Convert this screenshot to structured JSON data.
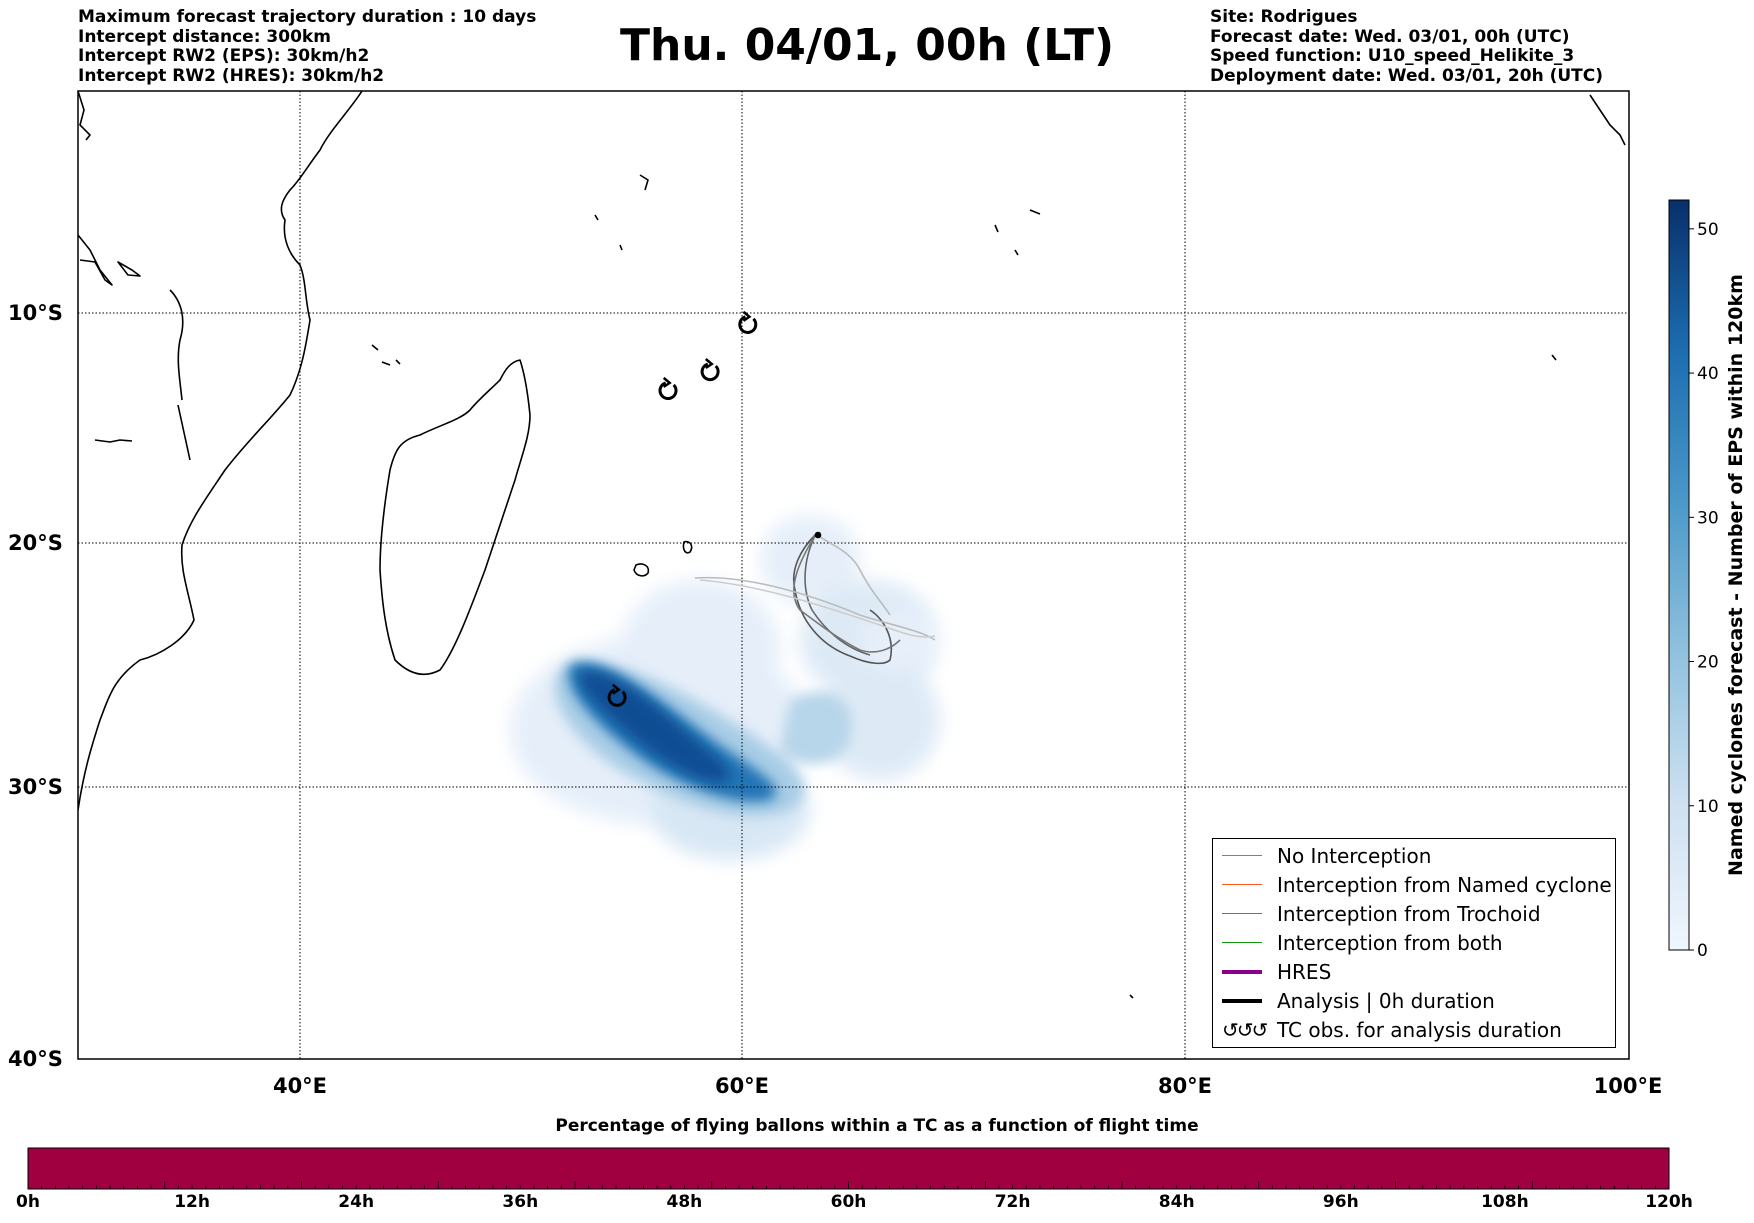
{
  "header": {
    "left": [
      "Maximum forecast trajectory duration : 10 days",
      "Intercept distance: 300km",
      "Intercept RW2 (EPS):  30km/h2",
      "Intercept RW2 (HRES): 30km/h2"
    ],
    "title": "Thu. 04/01, 00h (LT)",
    "right": [
      "Site: Rodrigues",
      "Forecast date: Wed. 03/01, 00h (UTC)",
      "Speed function: U10_speed_Helikite_3",
      "Deployment date: Wed. 03/01, 20h (UTC)"
    ]
  },
  "map": {
    "lat_labels": [
      "10°S",
      "20°S",
      "30°S",
      "40°S"
    ],
    "lon_labels": [
      "40°E",
      "60°E",
      "80°E",
      "100°E"
    ],
    "lon_range": [
      30,
      100
    ],
    "lat_range": [
      -40,
      -0.5
    ],
    "gridlines": true
  },
  "colorbar": {
    "label": "Named cyclones forecast - Number of EPS within 120km",
    "ticks": [
      "0",
      "10",
      "20",
      "30",
      "40",
      "50"
    ],
    "range": [
      0,
      52
    ],
    "colormap": "Blues"
  },
  "legend": {
    "items": [
      {
        "label": "No Interception",
        "color": "#808080",
        "style": "thin-line"
      },
      {
        "label": "Interception from Named cyclone",
        "color": "#ff5a1e",
        "style": "thin-line"
      },
      {
        "label": "Interception from Trochoid",
        "color": "#8a7a00",
        "style": "thin-line"
      },
      {
        "label": "Interception from both",
        "color": "#119911",
        "style": "thin-line"
      },
      {
        "label": "HRES",
        "color": "#8b008b",
        "style": "thick-line"
      },
      {
        "label": "Analysis | 0h duration",
        "color": "#000000",
        "style": "thick-line"
      },
      {
        "label": "TC obs. for analysis duration",
        "color": "#000000",
        "style": "cyclone-symbols"
      }
    ]
  },
  "tc_observations": [
    {
      "lon": 60.2,
      "lat": -10.5
    },
    {
      "lon": 58.5,
      "lat": -12.5
    },
    {
      "lon": 56.6,
      "lat": -13.3
    },
    {
      "lon": 54.3,
      "lat": -26.3
    }
  ],
  "bottom_bar": {
    "title": "Percentage of flying ballons within a TC as a function of flight time",
    "color": "#a00040",
    "labels": [
      "0h",
      "12h",
      "24h",
      "36h",
      "48h",
      "60h",
      "72h",
      "84h",
      "96h",
      "108h",
      "120h"
    ]
  }
}
